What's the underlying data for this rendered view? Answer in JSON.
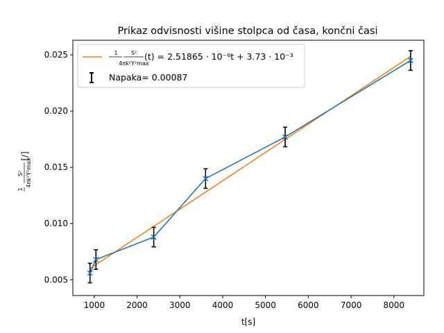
{
  "chart_data": {
    "type": "line",
    "title": "Prikaz odvisnosti višine stolpca od časa, končni časi",
    "xlabel": "t[s]",
    "ylabel": {
      "coefficient": "1",
      "numerator": "S²",
      "denominator": "4πk²Y²max",
      "units": "[/]"
    },
    "xlim": [
      500,
      8700
    ],
    "ylim": [
      0.0036,
      0.0263
    ],
    "x_ticks": [
      1000,
      2000,
      3000,
      4000,
      5000,
      6000,
      7000,
      8000
    ],
    "y_ticks": [
      0.005,
      0.01,
      0.015,
      0.02,
      0.025
    ],
    "y_tick_labels": [
      "0.005",
      "0.010",
      "0.015",
      "0.020",
      "0.025"
    ],
    "grid": false,
    "legend_position": "top-left",
    "series": [
      {
        "kind": "measurement",
        "color": "#1f77b4",
        "marker": "x",
        "x": [
          900,
          1040,
          2390,
          3600,
          5460,
          8390
        ],
        "y": [
          0.0056,
          0.0068,
          0.0088,
          0.014,
          0.0177,
          0.0245
        ]
      },
      {
        "kind": "fit",
        "color": "#ff7f0e",
        "x": [
          900,
          8390
        ],
        "slope": 2.51865e-06,
        "intercept": 0.00373
      }
    ],
    "errorbar": {
      "color": "#000000",
      "value": 0.00087
    },
    "legend": {
      "fit_label": {
        "coefficient": "1",
        "fraction_top": "S²",
        "fraction_bottom": "4πk²Y²max",
        "equation": "(t) = 2.51865 · 10⁻⁶t + 3.73 · 10⁻³"
      },
      "error_label": "Napaka= 0.00087"
    }
  }
}
